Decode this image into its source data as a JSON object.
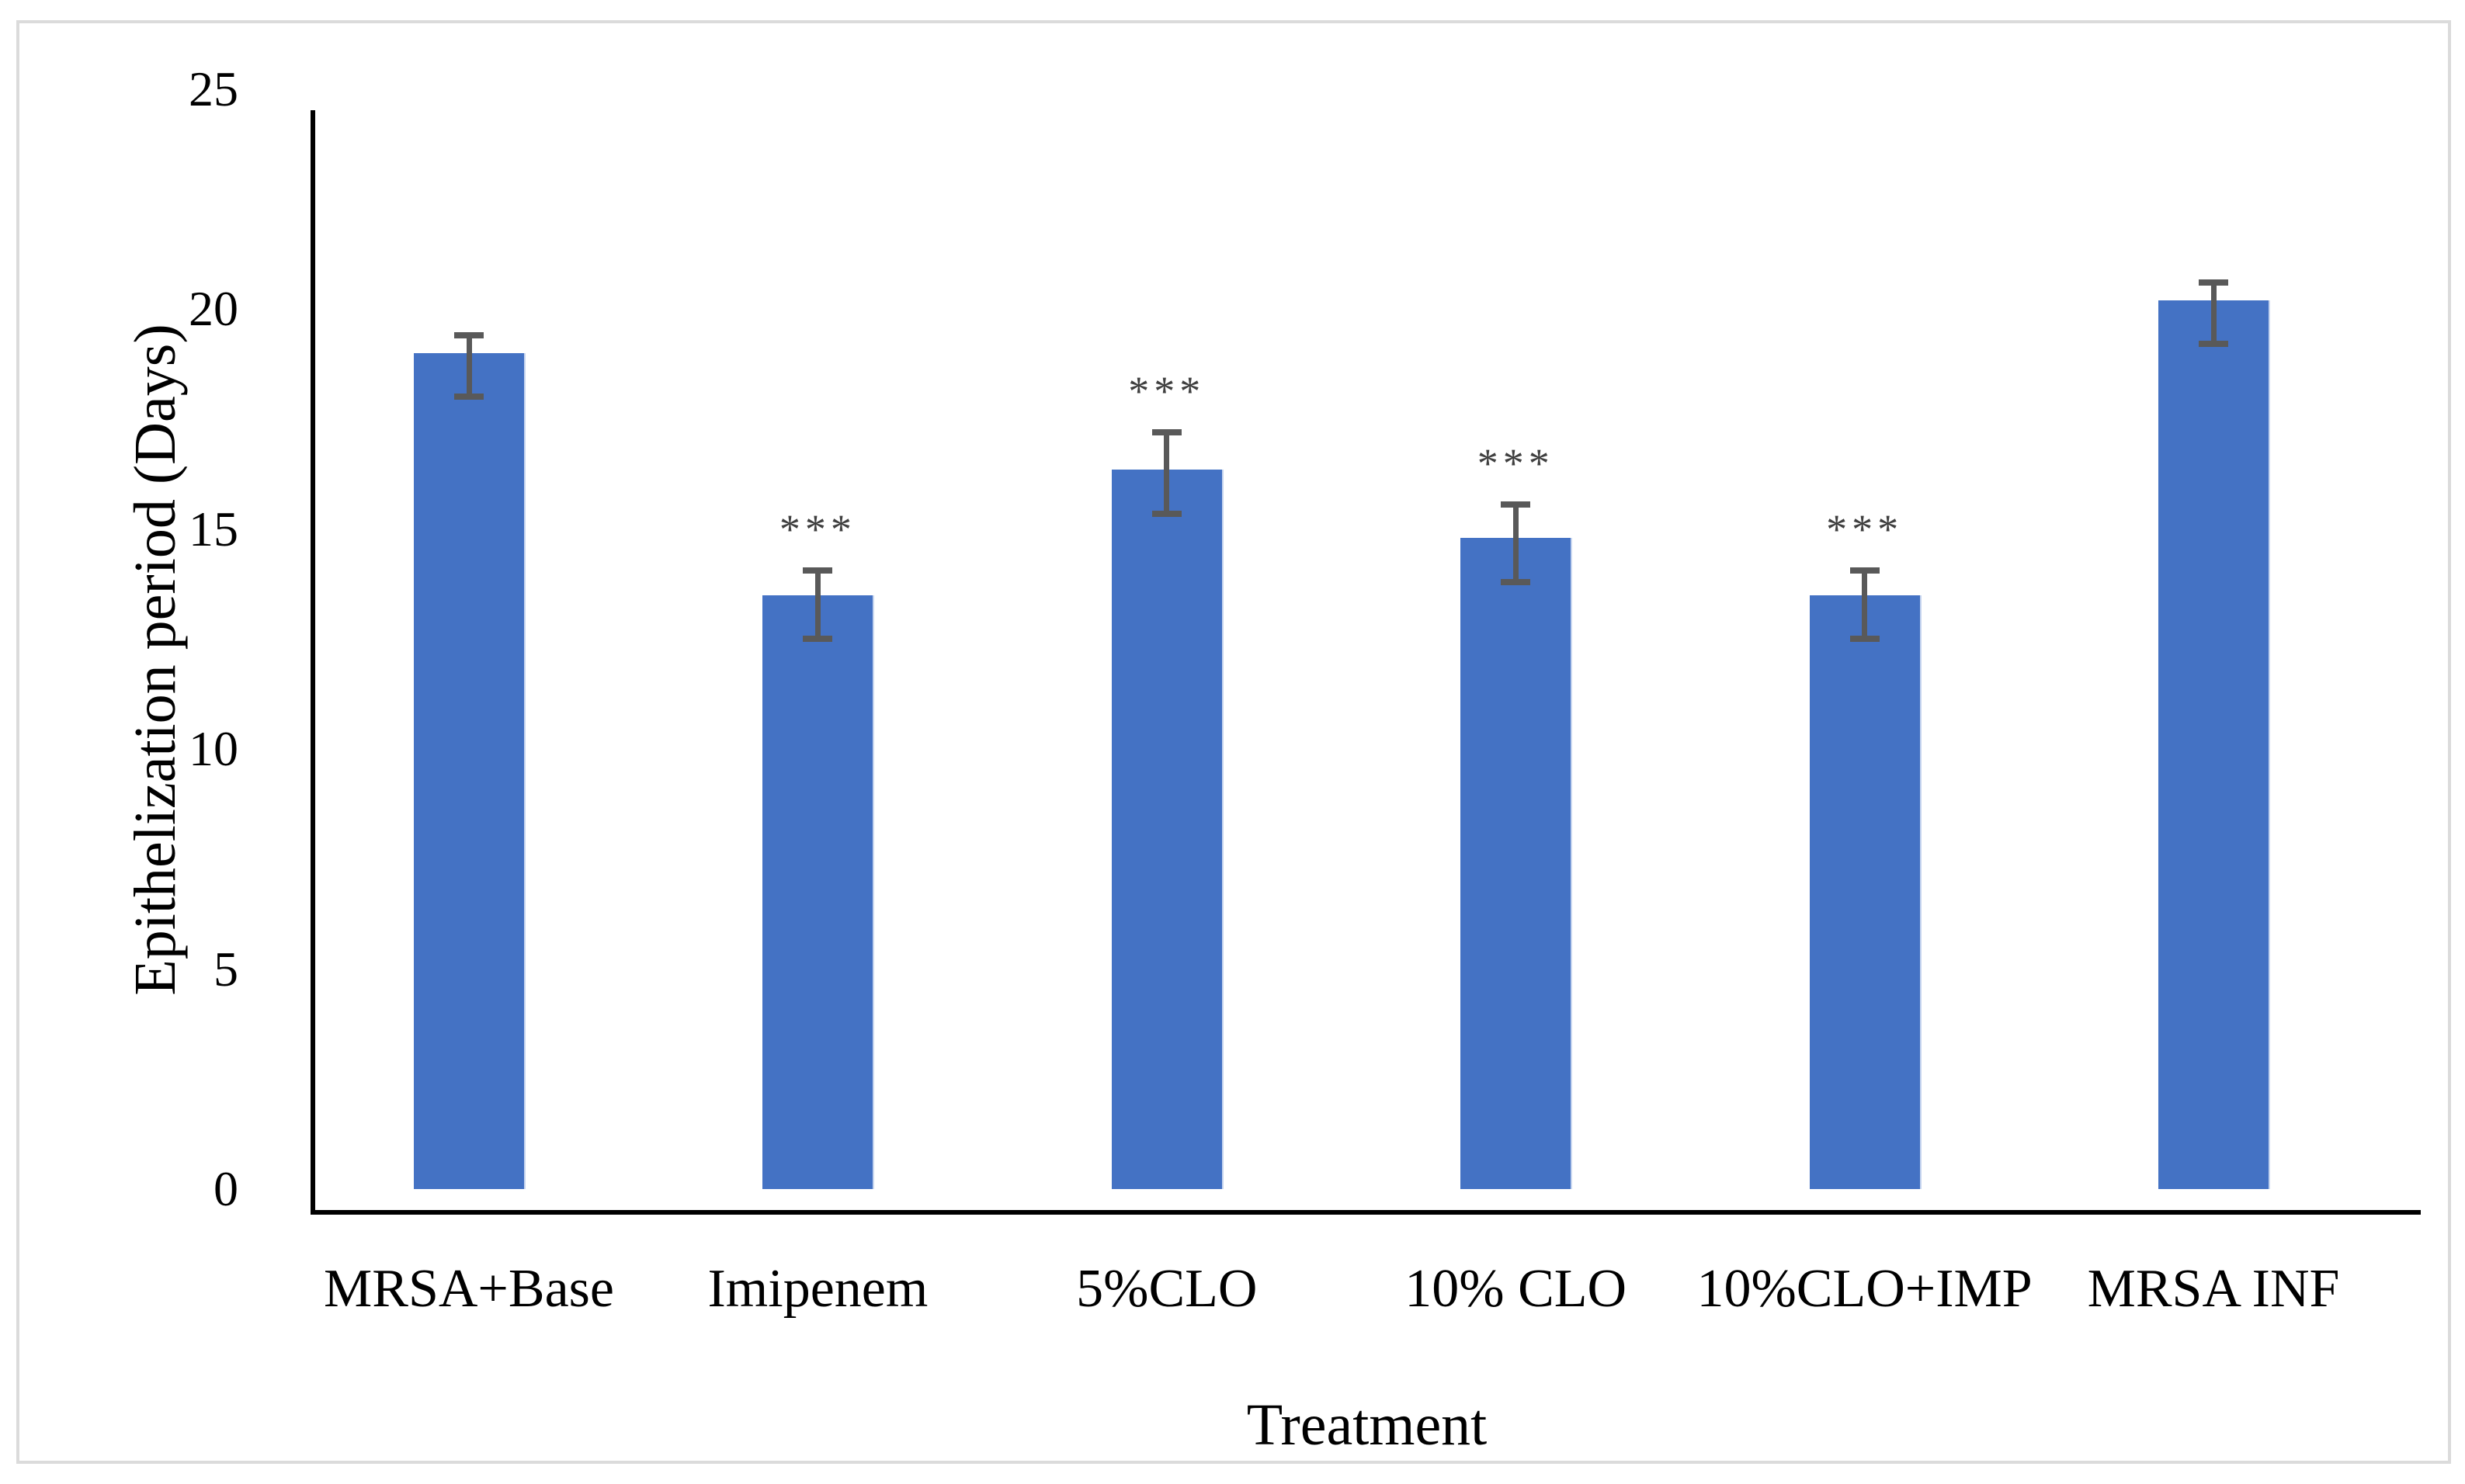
{
  "chart_data": {
    "type": "bar",
    "title": "",
    "xlabel": "Treatment",
    "ylabel": "Epithelization period (Days)",
    "categories": [
      "MRSA+Base",
      "Imipenem",
      "5%CLO",
      "10% CLO",
      "10%CLO+IMP",
      "MRSA INF"
    ],
    "values": [
      19.0,
      13.5,
      16.35,
      14.8,
      13.5,
      20.2
    ],
    "error_up": [
      0.4,
      0.55,
      0.85,
      0.75,
      0.55,
      0.4
    ],
    "error_down": [
      1.0,
      1.0,
      1.0,
      1.0,
      1.0,
      1.0
    ],
    "significance": [
      "",
      "***",
      "***",
      "***",
      "***",
      ""
    ],
    "ylim": [
      0,
      25
    ],
    "yticks": [
      0,
      5,
      10,
      15,
      20,
      25
    ],
    "grid": false,
    "legend_position": "none",
    "colors": {
      "bar": "#4472C4",
      "error_bar": "#595959",
      "axis": "#000000",
      "text": "#000000",
      "significance_marks": "#3F3F3F",
      "figure_border": "#DBDBDB",
      "background": "#FFFFFF"
    }
  }
}
